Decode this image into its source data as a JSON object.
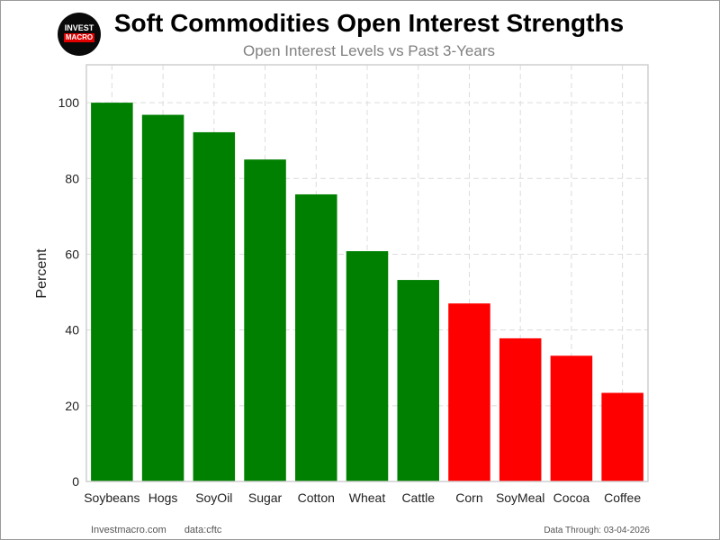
{
  "logo": {
    "line1": "INVEST",
    "line2": "MACRO"
  },
  "footer": {
    "site": "Investmacro.com",
    "source": "data:cftc",
    "data_through": "Data Through: 03-04-2026"
  },
  "chart_data": {
    "type": "bar",
    "title": "Soft Commodities Open Interest Strengths",
    "subtitle": "Open Interest Levels vs Past 3-Years",
    "xlabel": "",
    "ylabel": "Percent",
    "ylim": [
      0,
      110
    ],
    "yticks": [
      0,
      20,
      40,
      60,
      80,
      100
    ],
    "grid": true,
    "legend": "none",
    "categories": [
      "Soybeans",
      "Hogs",
      "SoyOil",
      "Sugar",
      "Cotton",
      "Wheat",
      "Cattle",
      "Corn",
      "SoyMeal",
      "Cocoa",
      "Coffee"
    ],
    "values": [
      100,
      96.8,
      92.2,
      85,
      75.8,
      60.8,
      53.2,
      47,
      37.8,
      33.2,
      23.4
    ],
    "colors": [
      "#008000",
      "#008000",
      "#008000",
      "#008000",
      "#008000",
      "#008000",
      "#008000",
      "#ff0000",
      "#ff0000",
      "#ff0000",
      "#ff0000"
    ]
  }
}
